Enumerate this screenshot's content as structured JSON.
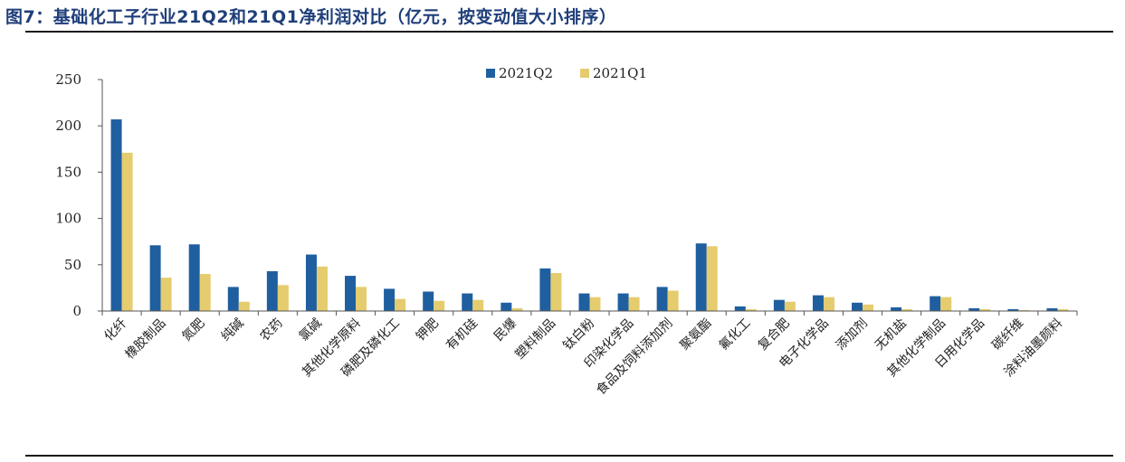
{
  "figure_title": "图7：基础化工子行业21Q2和21Q1净利润对比（亿元，按变动值大小排序）",
  "colors": {
    "q2": "#1f5fa0",
    "q1": "#e5cc6e",
    "title": "#1f3f7a"
  },
  "chart_data": {
    "type": "bar",
    "title": "",
    "xlabel": "",
    "ylabel": "",
    "ylim": [
      0,
      250
    ],
    "yticks": [
      0,
      50,
      100,
      150,
      200,
      250
    ],
    "legend_position": "top-center",
    "grid": false,
    "categories": [
      "化纤",
      "橡胶制品",
      "氮肥",
      "纯碱",
      "农药",
      "氯碱",
      "其他化学原料",
      "磷肥及磷化工",
      "钾肥",
      "有机硅",
      "民爆",
      "塑料制品",
      "钛白粉",
      "印染化学品",
      "食品及饲料添加剂",
      "聚氨酯",
      "氟化工",
      "复合肥",
      "电子化学品",
      "添加剂",
      "无机盐",
      "其他化学制品",
      "日用化学品",
      "碳纤维",
      "涂料油墨颜料"
    ],
    "series": [
      {
        "name": "2021Q2",
        "values": [
          207,
          71,
          72,
          26,
          43,
          61,
          38,
          24,
          21,
          19,
          9,
          46,
          19,
          19,
          26,
          73,
          5,
          12,
          17,
          9,
          4,
          16,
          3,
          2,
          3
        ]
      },
      {
        "name": "2021Q1",
        "values": [
          171,
          36,
          40,
          10,
          28,
          48,
          26,
          13,
          11,
          12,
          3,
          41,
          15,
          15,
          22,
          70,
          2,
          10,
          15,
          7,
          2,
          15,
          2,
          1,
          2
        ]
      }
    ]
  }
}
